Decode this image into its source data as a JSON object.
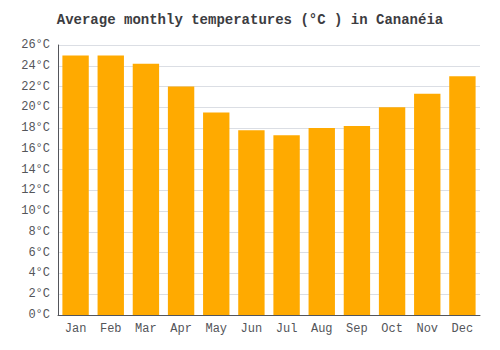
{
  "chart_data": {
    "type": "bar",
    "title": "Average monthly temperatures (°C ) in Cananéia",
    "categories": [
      "Jan",
      "Feb",
      "Mar",
      "Apr",
      "May",
      "Jun",
      "Jul",
      "Aug",
      "Sep",
      "Oct",
      "Nov",
      "Dec"
    ],
    "values": [
      25.0,
      25.0,
      24.2,
      22.0,
      19.5,
      17.8,
      17.3,
      18.0,
      18.2,
      20.0,
      21.3,
      23.0
    ],
    "color": "#FFAA00",
    "ylim": [
      0,
      26
    ],
    "yticks": [
      {
        "value": 0,
        "label": "0°C"
      },
      {
        "value": 2,
        "label": "2°C"
      },
      {
        "value": 4,
        "label": "4°C"
      },
      {
        "value": 6,
        "label": "6°C"
      },
      {
        "value": 8,
        "label": "8°C"
      },
      {
        "value": 10,
        "label": "10°C"
      },
      {
        "value": 12,
        "label": "12°C"
      },
      {
        "value": 14,
        "label": "14°C"
      },
      {
        "value": 16,
        "label": "16°C"
      },
      {
        "value": 18,
        "label": "18°C"
      },
      {
        "value": 20,
        "label": "20°C"
      },
      {
        "value": 22,
        "label": "22°C"
      },
      {
        "value": 24,
        "label": "24°C"
      },
      {
        "value": 26,
        "label": "26°C"
      }
    ],
    "grid": true
  }
}
